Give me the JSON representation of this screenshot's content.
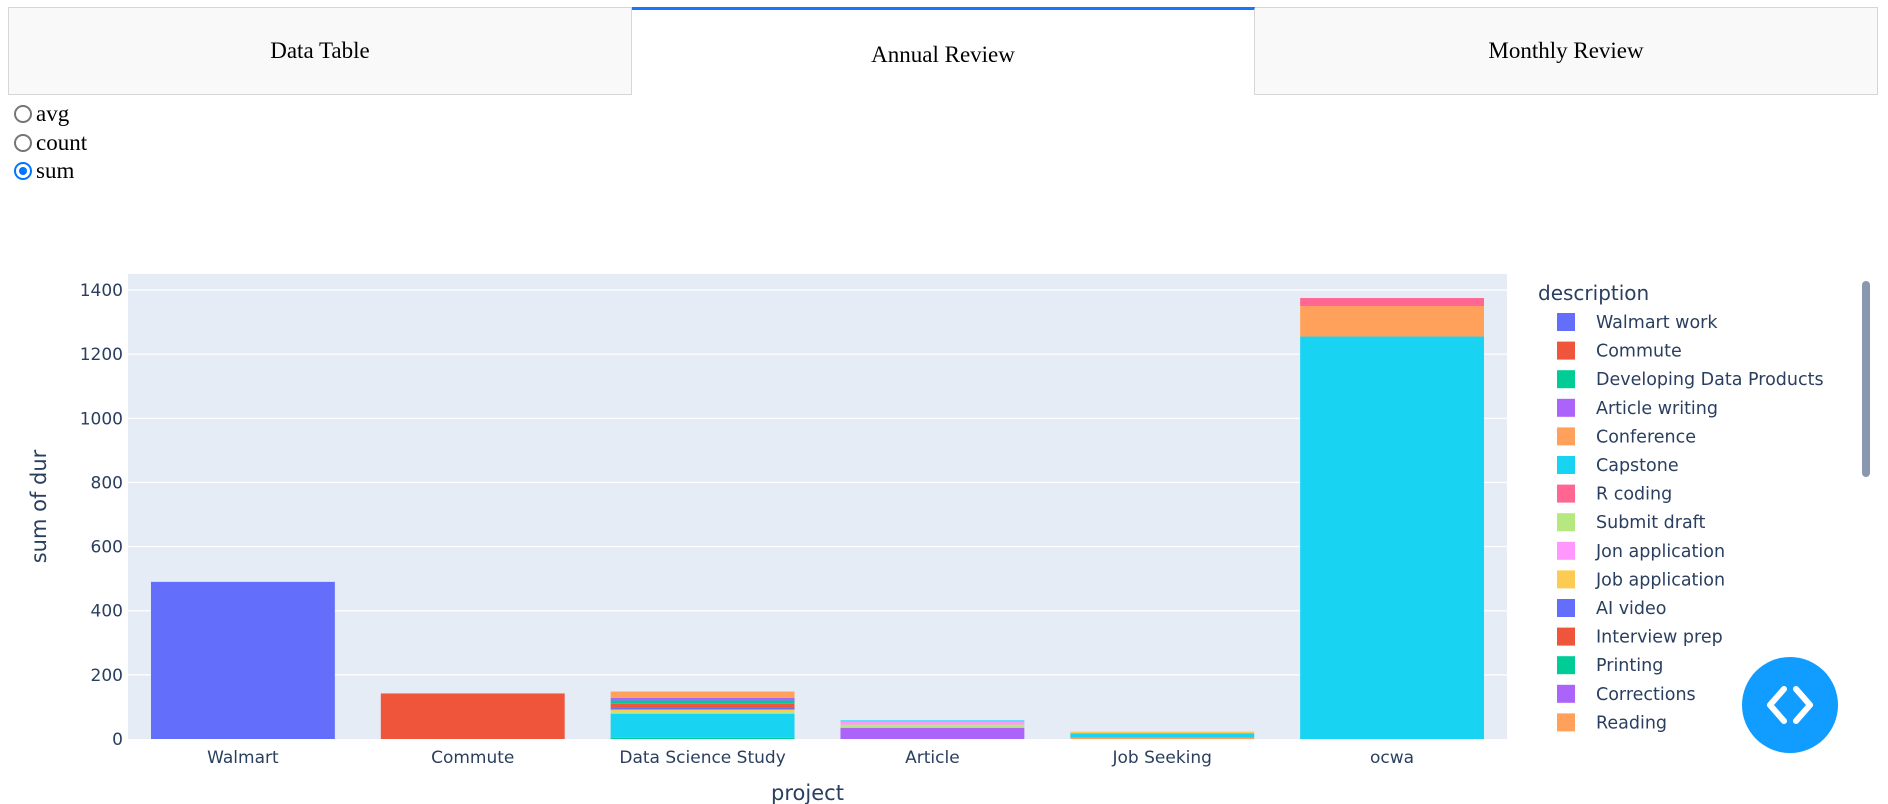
{
  "tabs": [
    {
      "label": "Data Table",
      "active": false
    },
    {
      "label": "Annual Review",
      "active": true
    },
    {
      "label": "Monthly Review",
      "active": false
    }
  ],
  "radio_options": [
    {
      "label": "avg",
      "checked": false
    },
    {
      "label": "count",
      "checked": false
    },
    {
      "label": "sum",
      "checked": true
    }
  ],
  "fab": {
    "icon": "code-icon",
    "color": "#119dff"
  },
  "chart_data": {
    "type": "bar",
    "barmode": "stack",
    "xlabel": "project",
    "ylabel": "sum of dur",
    "categories": [
      "Walmart",
      "Commute",
      "Data Science Study",
      "Article",
      "Job Seeking",
      "ocwa"
    ],
    "ylim": [
      0,
      1450
    ],
    "yticks": [
      0,
      200,
      400,
      600,
      800,
      1000,
      1200,
      1400
    ],
    "grid": true,
    "legend_title": "description",
    "legend_position": "right",
    "series": [
      {
        "name": "Walmart work",
        "color": "#636efa",
        "values": [
          490,
          0,
          0,
          0,
          0,
          0
        ]
      },
      {
        "name": "Commute",
        "color": "#ef553b",
        "values": [
          0,
          142,
          0,
          0,
          0,
          0
        ]
      },
      {
        "name": "Developing Data Products",
        "color": "#00cc96",
        "values": [
          0,
          0,
          4,
          0,
          0,
          0
        ]
      },
      {
        "name": "Article writing",
        "color": "#ab63fa",
        "values": [
          0,
          0,
          0,
          35,
          0,
          0
        ]
      },
      {
        "name": "Conference",
        "color": "#ffa15a",
        "values": [
          0,
          0,
          0,
          0,
          4,
          0
        ]
      },
      {
        "name": "Capstone",
        "color": "#19d3f3",
        "values": [
          0,
          0,
          75,
          0,
          14,
          1255
        ]
      },
      {
        "name": "R coding",
        "color": "#ff6692",
        "values": [
          0,
          0,
          0,
          0,
          0,
          0
        ]
      },
      {
        "name": "Submit draft",
        "color": "#b6e880",
        "values": [
          0,
          0,
          5,
          10,
          0,
          0
        ]
      },
      {
        "name": "Jon application",
        "color": "#ff97ff",
        "values": [
          0,
          0,
          0,
          10,
          0,
          0
        ]
      },
      {
        "name": "Job application",
        "color": "#fecb52",
        "values": [
          0,
          0,
          8,
          0,
          5,
          0
        ]
      },
      {
        "name": "AI video",
        "color": "#636efa",
        "values": [
          0,
          0,
          6,
          0,
          0,
          0
        ]
      },
      {
        "name": "Interview prep",
        "color": "#ef553b",
        "values": [
          0,
          0,
          12,
          0,
          0,
          0
        ]
      },
      {
        "name": "Printing",
        "color": "#00cc96",
        "values": [
          0,
          0,
          10,
          0,
          0,
          0
        ]
      },
      {
        "name": "Corrections",
        "color": "#ab63fa",
        "values": [
          0,
          0,
          8,
          0,
          0,
          0
        ]
      },
      {
        "name": "Reading",
        "color": "#ffa15a",
        "values": [
          0,
          0,
          20,
          0,
          0,
          95
        ]
      },
      {
        "name": "",
        "color": "#ff6692",
        "values": [
          0,
          0,
          0,
          0,
          0,
          25
        ]
      },
      {
        "name": "",
        "color": "#19d3f3",
        "values": [
          0,
          0,
          0,
          3,
          0,
          0
        ]
      }
    ]
  }
}
